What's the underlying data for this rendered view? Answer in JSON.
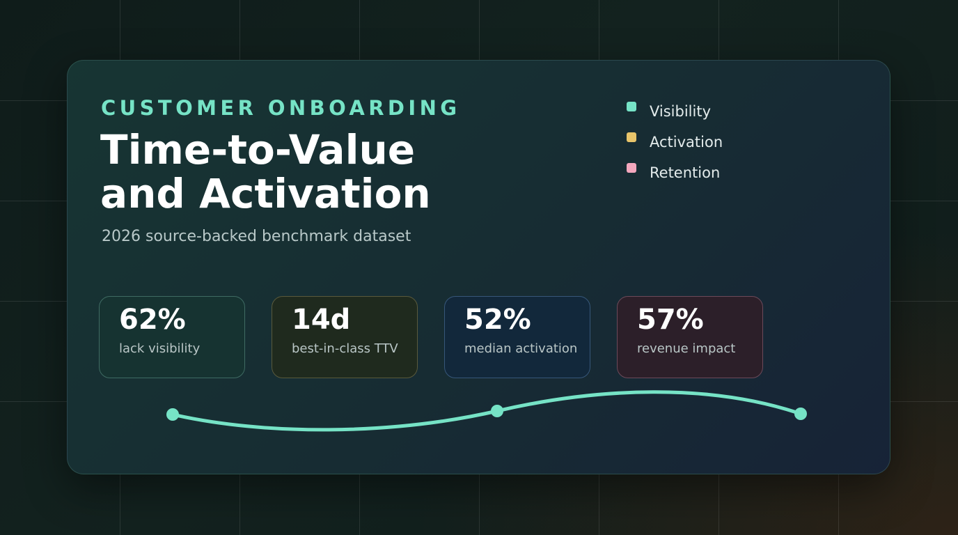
{
  "header": {
    "eyebrow": "CUSTOMER ONBOARDING",
    "title_line1": "Time-to-Value",
    "title_line2": "and Activation",
    "subtitle": "2026 source-backed benchmark dataset"
  },
  "legend": {
    "items": [
      {
        "label": "Visibility",
        "color": "#76e3c6"
      },
      {
        "label": "Activation",
        "color": "#e8c46a"
      },
      {
        "label": "Retention",
        "color": "#f3a7bd"
      }
    ]
  },
  "stats": [
    {
      "value": "62%",
      "label": "lack visibility",
      "bg": "#163331",
      "border": "#3f6b63"
    },
    {
      "value": "14d",
      "label": "best-in-class TTV",
      "bg": "#1f2a1e",
      "border": "#5a5a3c"
    },
    {
      "value": "52%",
      "label": "median activation",
      "bg": "#12283b",
      "border": "#37577a"
    },
    {
      "value": "57%",
      "label": "revenue impact",
      "bg": "#2c1f29",
      "border": "#6c4a5a"
    }
  ],
  "trend": {
    "color": "#76e3c6"
  }
}
